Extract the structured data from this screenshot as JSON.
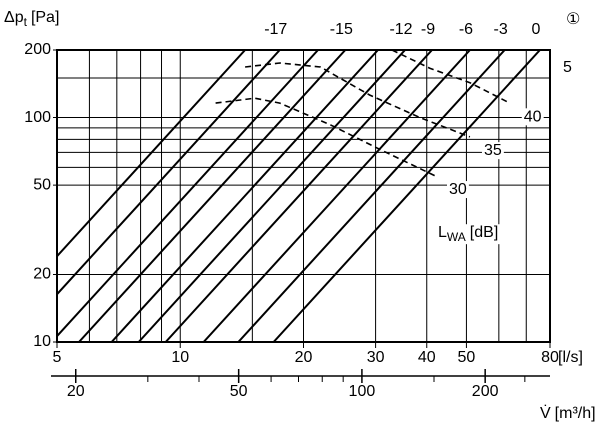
{
  "chart_data": {
    "type": "line",
    "y_label": {
      "symbol": "Δp",
      "sub": "t",
      "unit": "[Pa]"
    },
    "x_unit": "[l/s]",
    "x2_label": {
      "symbol": "V̇",
      "unit": "[m³/h]"
    },
    "xscale": "log",
    "yscale": "log",
    "xlim": [
      5,
      80
    ],
    "ylim": [
      10,
      200
    ],
    "xticks": [
      5,
      10,
      20,
      30,
      40,
      50,
      80
    ],
    "xgrid": [
      6,
      7,
      8,
      9,
      15,
      60,
      70
    ],
    "yticks": [
      10,
      20,
      50,
      100,
      200
    ],
    "ygrid": [
      60,
      70,
      80,
      90,
      150
    ],
    "x2lim": [
      18,
      288
    ],
    "x2ticks": [
      20,
      50,
      100,
      200
    ],
    "x2minor": [
      30,
      40,
      60,
      70,
      80,
      90,
      150,
      250
    ],
    "diagonals": {
      "color": "#000000",
      "flow_at_200pa": [
        14.4,
        17.5,
        21.7,
        25.3,
        30.4,
        35.4,
        41.2,
        51,
        62,
        75.6
      ],
      "labels": [
        null,
        -17,
        null,
        -15,
        null,
        -12,
        -9,
        -6,
        -3,
        0
      ]
    },
    "series": [
      {
        "name": "30",
        "color": "#000000",
        "x": [
          12.2,
          15.2,
          17.5,
          23.2,
          30.8,
          41.9
        ],
        "values": [
          116,
          122,
          116,
          93,
          72,
          55
        ]
      },
      {
        "name": "35",
        "color": "#000000",
        "x": [
          14.4,
          17.5,
          22,
          29,
          38.5,
          51
        ],
        "values": [
          168,
          175,
          168,
          126,
          100,
          82
        ]
      },
      {
        "name": "40",
        "color": "#000000",
        "x": [
          32.9,
          40.7,
          51,
          63.8
        ],
        "values": [
          200,
          166,
          143,
          116
        ]
      }
    ],
    "legend_title": {
      "main": "L",
      "sub": "WA",
      "unit": "[dB]"
    },
    "marker": "①",
    "side_label": "5"
  }
}
